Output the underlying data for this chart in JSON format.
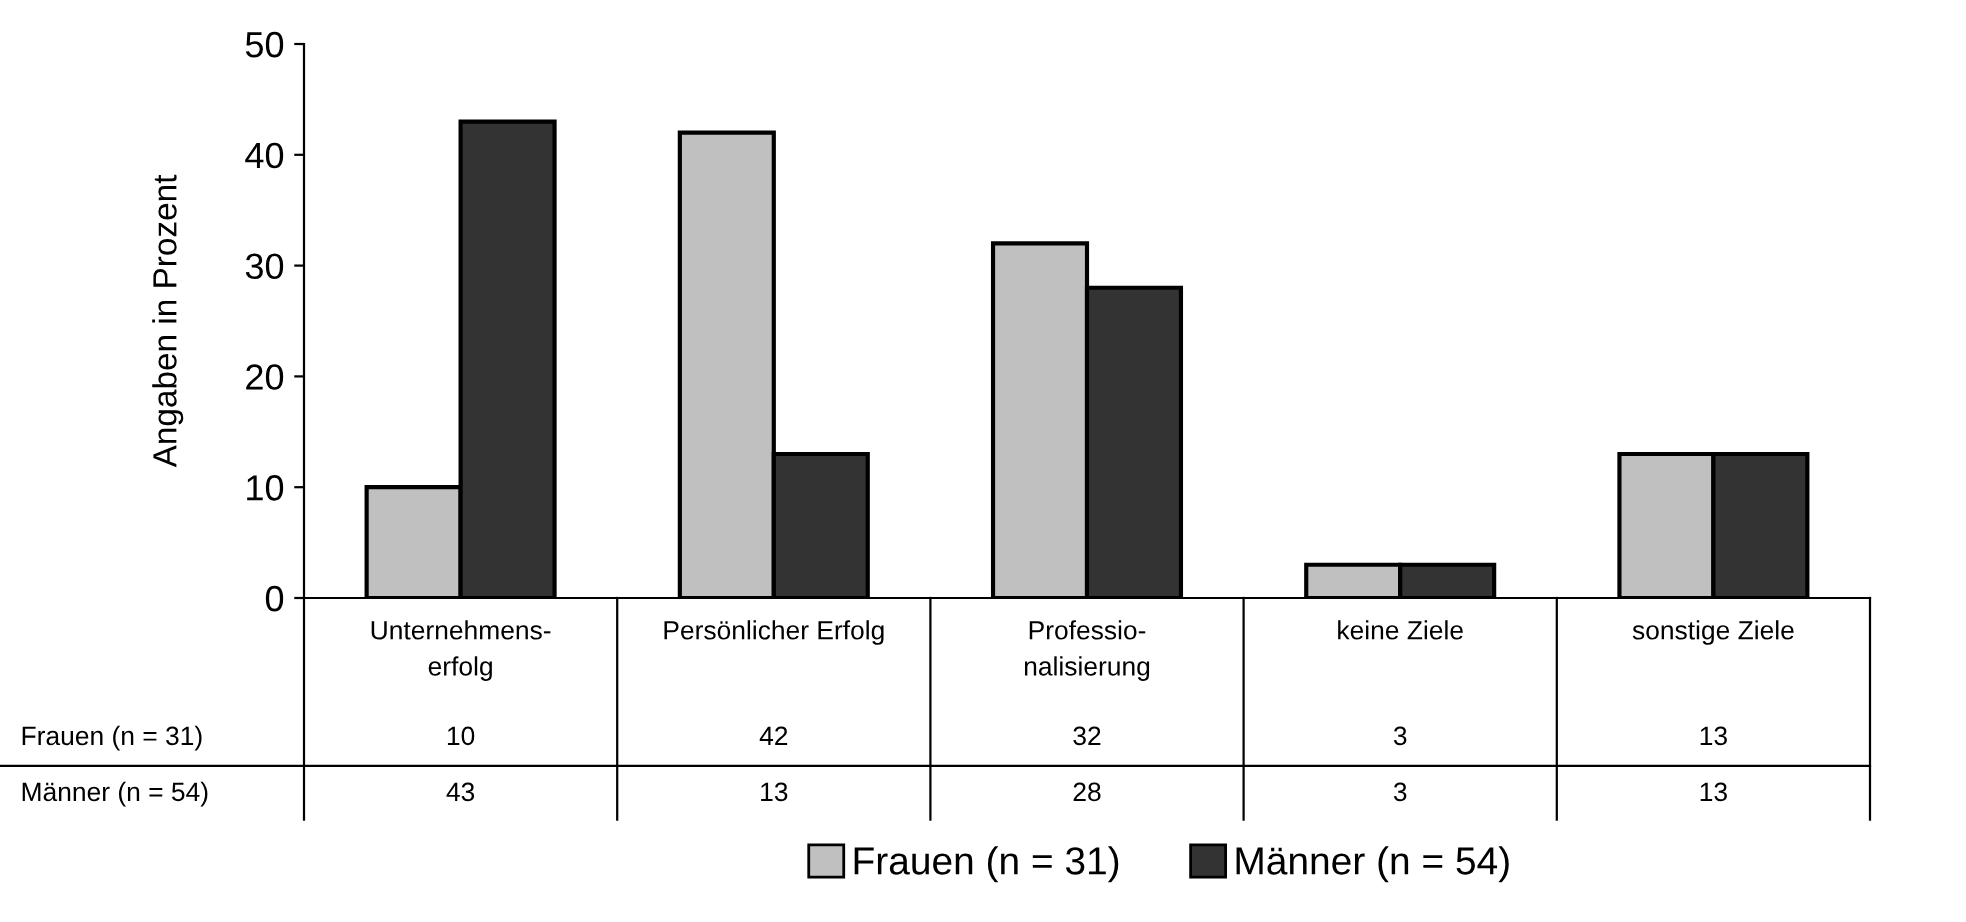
{
  "chart_data": {
    "type": "bar",
    "ylabel": "Angaben in Prozent",
    "categories": [
      "Unternehmens-\nerfolg",
      "Persönlicher Erfolg",
      "Professio-\nnalisierung",
      "keine Ziele",
      "sonstige Ziele"
    ],
    "series": [
      {
        "name": "Frauen (n = 31)",
        "color": "#c0c0c0",
        "values": [
          10,
          42,
          32,
          3,
          13
        ]
      },
      {
        "name": "Männer (n = 54)",
        "color": "#333333",
        "values": [
          43,
          13,
          28,
          3,
          13
        ]
      }
    ],
    "ylim": [
      0,
      50
    ],
    "yticks": [
      0,
      10,
      20,
      30,
      40,
      50
    ],
    "grid": false,
    "legend": "bottom",
    "data_labels": true
  }
}
